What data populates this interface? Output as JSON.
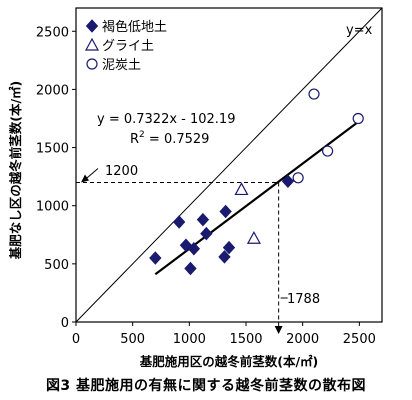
{
  "caption": "図3 基肥施用の有無に関する越冬前茎数の散布図",
  "chart_data": {
    "type": "scatter",
    "xlabel": "基肥施用区の越冬前茎数(本/㎡)",
    "ylabel": "基肥なし区の越冬前茎数(本/㎡)",
    "xlim": [
      0,
      2700
    ],
    "ylim": [
      0,
      2700
    ],
    "x_ticks": [
      0,
      500,
      1000,
      1500,
      2000,
      2500
    ],
    "y_ticks": [
      0,
      500,
      1000,
      1500,
      2000,
      2500
    ],
    "x_tick_labels": [
      "0",
      "500",
      "1000",
      "1500",
      "2000",
      "2500"
    ],
    "y_tick_labels": [
      "0",
      "500",
      "1000",
      "1500",
      "2000",
      "2500"
    ],
    "grid": false,
    "legend_position": "top-left",
    "series": [
      {
        "name": "褐色低地土",
        "marker": "diamond-filled",
        "color": "#1a1a6e",
        "x": [
          700,
          910,
          970,
          1010,
          1040,
          1120,
          1150,
          1310,
          1320,
          1350,
          1870
        ],
        "y": [
          550,
          860,
          660,
          460,
          630,
          880,
          760,
          560,
          950,
          640,
          1210
        ]
      },
      {
        "name": "グライ土",
        "marker": "triangle-open",
        "color": "#1a1a6e",
        "x": [
          1460,
          1570
        ],
        "y": [
          1140,
          720
        ]
      },
      {
        "name": "泥炭土",
        "marker": "circle-open",
        "color": "#1a1a6e",
        "x": [
          1960,
          2100,
          2220,
          2490
        ],
        "y": [
          1240,
          1960,
          1470,
          1750
        ]
      }
    ],
    "reference_line": {
      "label": "y=x",
      "from": [
        0,
        0
      ],
      "to": [
        2700,
        2700
      ]
    },
    "regression": {
      "equation": "y = 0.7322x - 102.19",
      "r2_label": "R",
      "r2_value": " = 0.7529",
      "slope": 0.7322,
      "intercept": -102.19,
      "x_range": [
        700,
        2490
      ]
    },
    "annotations": [
      {
        "label": "1200",
        "axis": "y",
        "value": 1200
      },
      {
        "label": "1788",
        "axis": "x",
        "value": 1788
      }
    ]
  }
}
